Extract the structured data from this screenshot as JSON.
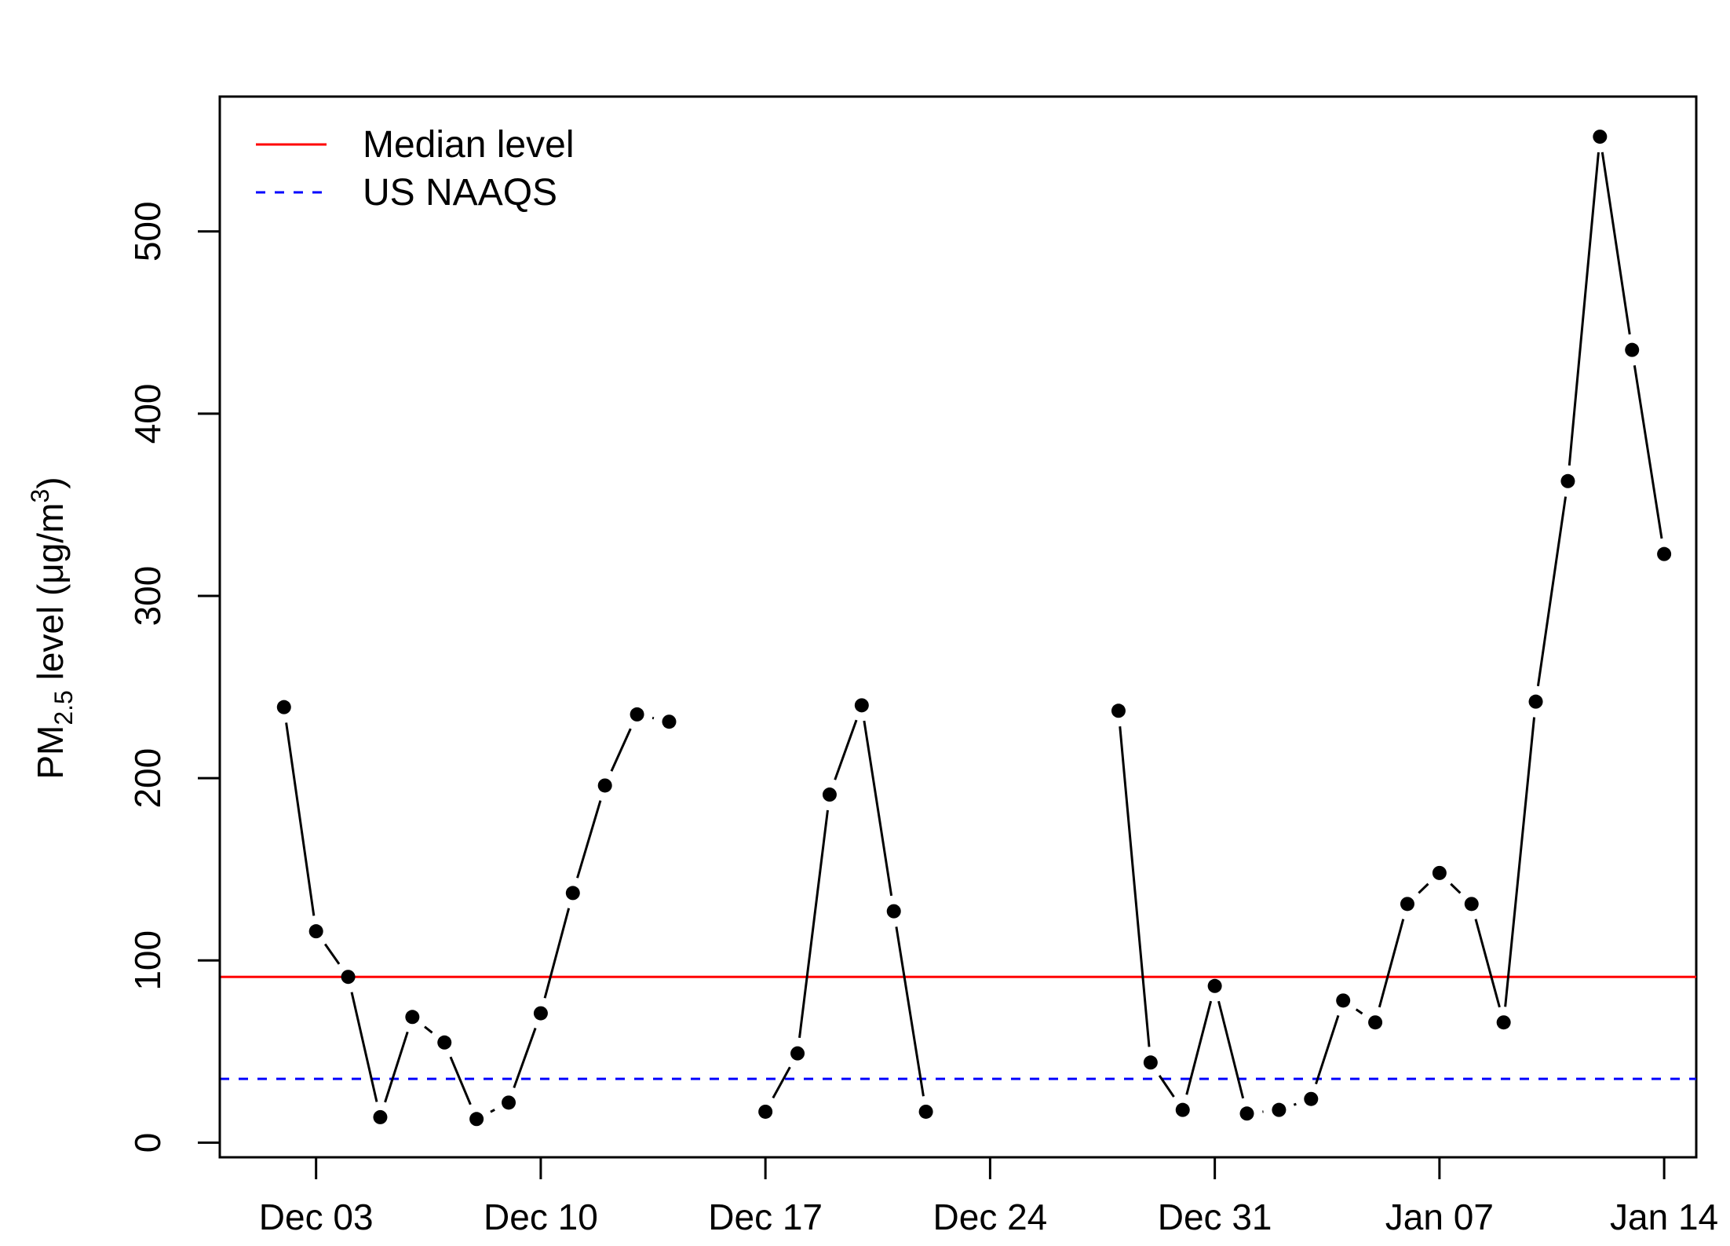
{
  "chart_data": {
    "type": "line",
    "title": "",
    "xlabel": "",
    "ylabel": {
      "prefix": "PM",
      "subscript": "2.5",
      "mid": " level (",
      "mu": "μ",
      "unit": "g/m",
      "superscript": "3",
      "close": ")"
    },
    "ylim": [
      -8,
      574
    ],
    "xlim": [
      "2012-11-30",
      "2013-01-15"
    ],
    "yticks": [
      0,
      100,
      200,
      300,
      400,
      500
    ],
    "xticks": [
      {
        "date": "2012-12-03",
        "label": "Dec 03"
      },
      {
        "date": "2012-12-10",
        "label": "Dec 10"
      },
      {
        "date": "2012-12-17",
        "label": "Dec 17"
      },
      {
        "date": "2012-12-24",
        "label": "Dec 24"
      },
      {
        "date": "2012-12-31",
        "label": "Dec 31"
      },
      {
        "date": "2013-01-07",
        "label": "Jan 07"
      },
      {
        "date": "2013-01-14",
        "label": "Jan 14"
      }
    ],
    "series": [
      {
        "name": "PM2.5",
        "color": "#000000",
        "segments": [
          [
            {
              "x": "2012-12-02",
              "y": 239
            },
            {
              "x": "2012-12-03",
              "y": 116
            },
            {
              "x": "2012-12-04",
              "y": 91
            },
            {
              "x": "2012-12-05",
              "y": 14
            },
            {
              "x": "2012-12-06",
              "y": 69
            },
            {
              "x": "2012-12-07",
              "y": 55
            },
            {
              "x": "2012-12-08",
              "y": 13
            },
            {
              "x": "2012-12-09",
              "y": 22
            },
            {
              "x": "2012-12-10",
              "y": 71
            },
            {
              "x": "2012-12-11",
              "y": 137
            },
            {
              "x": "2012-12-12",
              "y": 196
            },
            {
              "x": "2012-12-13",
              "y": 235
            },
            {
              "x": "2012-12-14",
              "y": 231
            }
          ],
          [
            {
              "x": "2012-12-17",
              "y": 17
            },
            {
              "x": "2012-12-18",
              "y": 49
            },
            {
              "x": "2012-12-19",
              "y": 191
            },
            {
              "x": "2012-12-20",
              "y": 240
            },
            {
              "x": "2012-12-21",
              "y": 127
            },
            {
              "x": "2012-12-22",
              "y": 17
            }
          ],
          [
            {
              "x": "2012-12-28",
              "y": 237
            },
            {
              "x": "2012-12-29",
              "y": 44
            },
            {
              "x": "2012-12-30",
              "y": 18
            },
            {
              "x": "2012-12-31",
              "y": 86
            },
            {
              "x": "2013-01-01",
              "y": 16
            },
            {
              "x": "2013-01-02",
              "y": 18
            },
            {
              "x": "2013-01-03",
              "y": 24
            },
            {
              "x": "2013-01-04",
              "y": 78
            },
            {
              "x": "2013-01-05",
              "y": 66
            },
            {
              "x": "2013-01-06",
              "y": 131
            },
            {
              "x": "2013-01-07",
              "y": 148
            },
            {
              "x": "2013-01-08",
              "y": 131
            },
            {
              "x": "2013-01-09",
              "y": 66
            },
            {
              "x": "2013-01-10",
              "y": 242
            },
            {
              "x": "2013-01-11",
              "y": 363
            },
            {
              "x": "2013-01-12",
              "y": 552
            },
            {
              "x": "2013-01-13",
              "y": 435
            },
            {
              "x": "2013-01-14",
              "y": 323
            }
          ]
        ]
      }
    ],
    "hlines": [
      {
        "name": "Median level",
        "y": 91,
        "color": "#ff0000",
        "style": "solid"
      },
      {
        "name": "US NAAQS",
        "y": 35,
        "color": "#0000ff",
        "style": "dashed"
      }
    ],
    "legend": {
      "position": "top-left",
      "items": [
        {
          "label": "Median level",
          "color": "#ff0000",
          "style": "solid"
        },
        {
          "label": "US NAAQS",
          "color": "#0000ff",
          "style": "dashed"
        }
      ]
    },
    "grid": false
  }
}
